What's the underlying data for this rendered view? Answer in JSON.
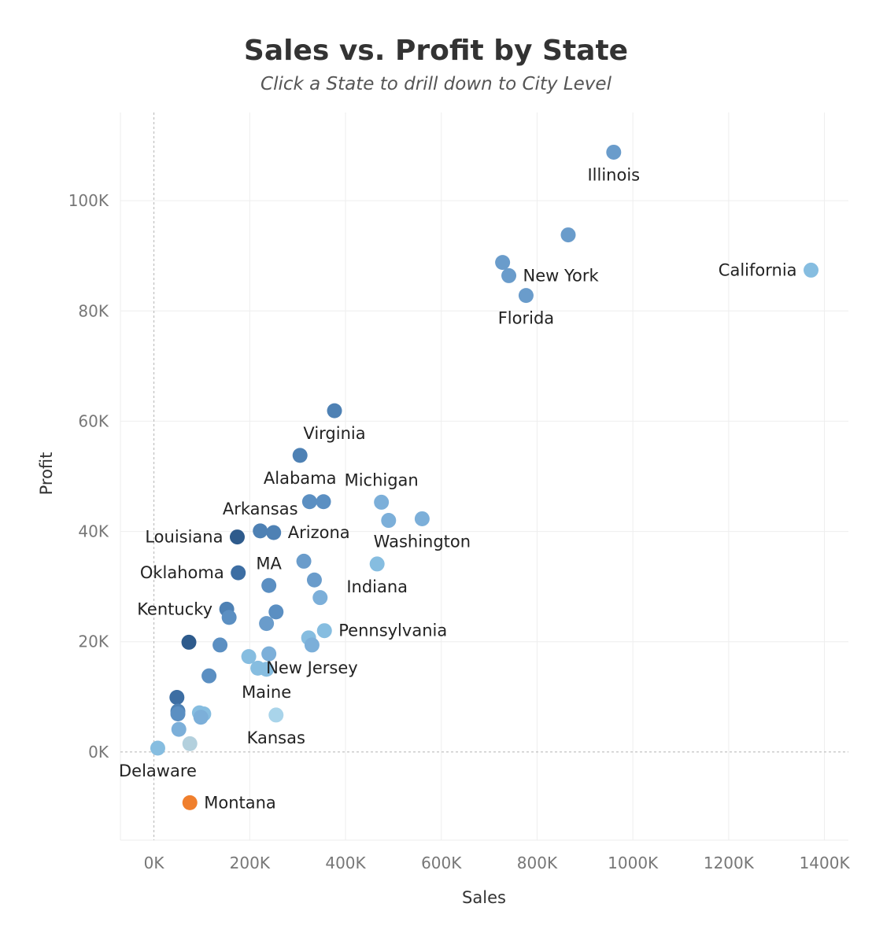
{
  "chart_data": {
    "type": "scatter",
    "title": "Sales vs. Profit by State",
    "subtitle": "Click a State to drill down to City Level",
    "xlabel": "Sales",
    "ylabel": "Profit",
    "xlim": [
      -70000,
      1450000
    ],
    "ylim": [
      -16000,
      116000
    ],
    "x_ticks": [
      0,
      200000,
      400000,
      600000,
      800000,
      1000000,
      1200000,
      1400000
    ],
    "x_tick_labels": [
      "0K",
      "200K",
      "400K",
      "600K",
      "800K",
      "1000K",
      "1200K",
      "1400K"
    ],
    "y_ticks": [
      0,
      20000,
      40000,
      60000,
      80000,
      100000
    ],
    "y_tick_labels": [
      "0K",
      "20K",
      "40K",
      "60K",
      "80K",
      "100K"
    ],
    "grid": true,
    "zero_lines": "dashed",
    "points": [
      {
        "x": 960000,
        "y": 108800,
        "color": "#6a9ccb",
        "label": "Illinois",
        "label_pos": "below"
      },
      {
        "x": 865000,
        "y": 93800,
        "color": "#6a9ccb"
      },
      {
        "x": 1372000,
        "y": 87400,
        "color": "#86bde0",
        "label": "California",
        "label_pos": "left"
      },
      {
        "x": 728000,
        "y": 88800,
        "color": "#6a9ccb"
      },
      {
        "x": 741000,
        "y": 86400,
        "color": "#6a9ccb",
        "label": "New York",
        "label_pos": "right"
      },
      {
        "x": 777000,
        "y": 82800,
        "color": "#6a9ccb",
        "label": "Florida",
        "label_pos": "below"
      },
      {
        "x": 377000,
        "y": 61900,
        "color": "#4e81b4",
        "label": "Virginia",
        "label_pos": "below"
      },
      {
        "x": 305000,
        "y": 53800,
        "color": "#4e81b4",
        "label": "Alabama",
        "label_pos": "below"
      },
      {
        "x": 325000,
        "y": 45400,
        "color": "#5b8fc2"
      },
      {
        "x": 354000,
        "y": 45400,
        "color": "#5b8fc2"
      },
      {
        "x": 475000,
        "y": 45300,
        "color": "#7cafd9",
        "label": "Michigan",
        "label_pos": "above"
      },
      {
        "x": 490000,
        "y": 42000,
        "color": "#7cafd9"
      },
      {
        "x": 560000,
        "y": 42300,
        "color": "#7cafd9",
        "label": "Washington",
        "label_pos": "below"
      },
      {
        "x": 222000,
        "y": 40100,
        "color": "#4e81b4",
        "label": "Arkansas",
        "label_pos": "above"
      },
      {
        "x": 250000,
        "y": 39800,
        "color": "#4e81b4",
        "label": "Arizona",
        "label_pos": "right"
      },
      {
        "x": 174000,
        "y": 39000,
        "color": "#2e5b8c",
        "label": "Louisiana",
        "label_pos": "left"
      },
      {
        "x": 313000,
        "y": 34600,
        "color": "#6a9ccb"
      },
      {
        "x": 466000,
        "y": 34100,
        "color": "#86bde0",
        "label": "Indiana",
        "label_pos": "below"
      },
      {
        "x": 176000,
        "y": 32500,
        "color": "#3d6ea3",
        "label": "Oklahoma",
        "label_pos": "left"
      },
      {
        "x": 240000,
        "y": 30200,
        "color": "#5b8fc2",
        "label": "MA",
        "label_pos": "above"
      },
      {
        "x": 335000,
        "y": 31200,
        "color": "#6a9ccb"
      },
      {
        "x": 347000,
        "y": 28000,
        "color": "#7cafd9"
      },
      {
        "x": 152000,
        "y": 25900,
        "color": "#4e81b4",
        "label": "Kentucky",
        "label_pos": "left"
      },
      {
        "x": 157000,
        "y": 24400,
        "color": "#5b8fc2"
      },
      {
        "x": 255000,
        "y": 25400,
        "color": "#5b8fc2"
      },
      {
        "x": 235000,
        "y": 23300,
        "color": "#6a9ccb"
      },
      {
        "x": 356000,
        "y": 22000,
        "color": "#86bde0",
        "label": "Pennsylvania",
        "label_pos": "right"
      },
      {
        "x": 73000,
        "y": 19900,
        "color": "#2e5b8c"
      },
      {
        "x": 138000,
        "y": 19400,
        "color": "#5b8fc2"
      },
      {
        "x": 323000,
        "y": 20700,
        "color": "#86bde0"
      },
      {
        "x": 330000,
        "y": 19400,
        "color": "#7cafd9",
        "label": "New Jersey",
        "label_pos": "below"
      },
      {
        "x": 198000,
        "y": 17300,
        "color": "#86bde0"
      },
      {
        "x": 240000,
        "y": 17800,
        "color": "#7cafd9"
      },
      {
        "x": 217000,
        "y": 15200,
        "color": "#86bde0"
      },
      {
        "x": 235000,
        "y": 15000,
        "color": "#86bde0",
        "label": "Maine",
        "label_pos": "below"
      },
      {
        "x": 115000,
        "y": 13800,
        "color": "#5b8fc2"
      },
      {
        "x": 48000,
        "y": 9900,
        "color": "#3d6ea3"
      },
      {
        "x": 50000,
        "y": 7400,
        "color": "#4e81b4"
      },
      {
        "x": 50000,
        "y": 6900,
        "color": "#5b8fc2"
      },
      {
        "x": 95000,
        "y": 7100,
        "color": "#86bde0"
      },
      {
        "x": 104000,
        "y": 6900,
        "color": "#86bde0"
      },
      {
        "x": 98000,
        "y": 6300,
        "color": "#7cafd9"
      },
      {
        "x": 255000,
        "y": 6700,
        "color": "#a9d4ea",
        "label": "Kansas",
        "label_pos": "below"
      },
      {
        "x": 52000,
        "y": 4100,
        "color": "#7cafd9"
      },
      {
        "x": 75000,
        "y": 1500,
        "color": "#b3d0dd"
      },
      {
        "x": 8000,
        "y": 700,
        "color": "#86bde0",
        "label": "Delaware",
        "label_pos": "below"
      },
      {
        "x": 75000,
        "y": -9200,
        "color": "#f07f2d",
        "label": "Montana",
        "label_pos": "right"
      }
    ]
  }
}
